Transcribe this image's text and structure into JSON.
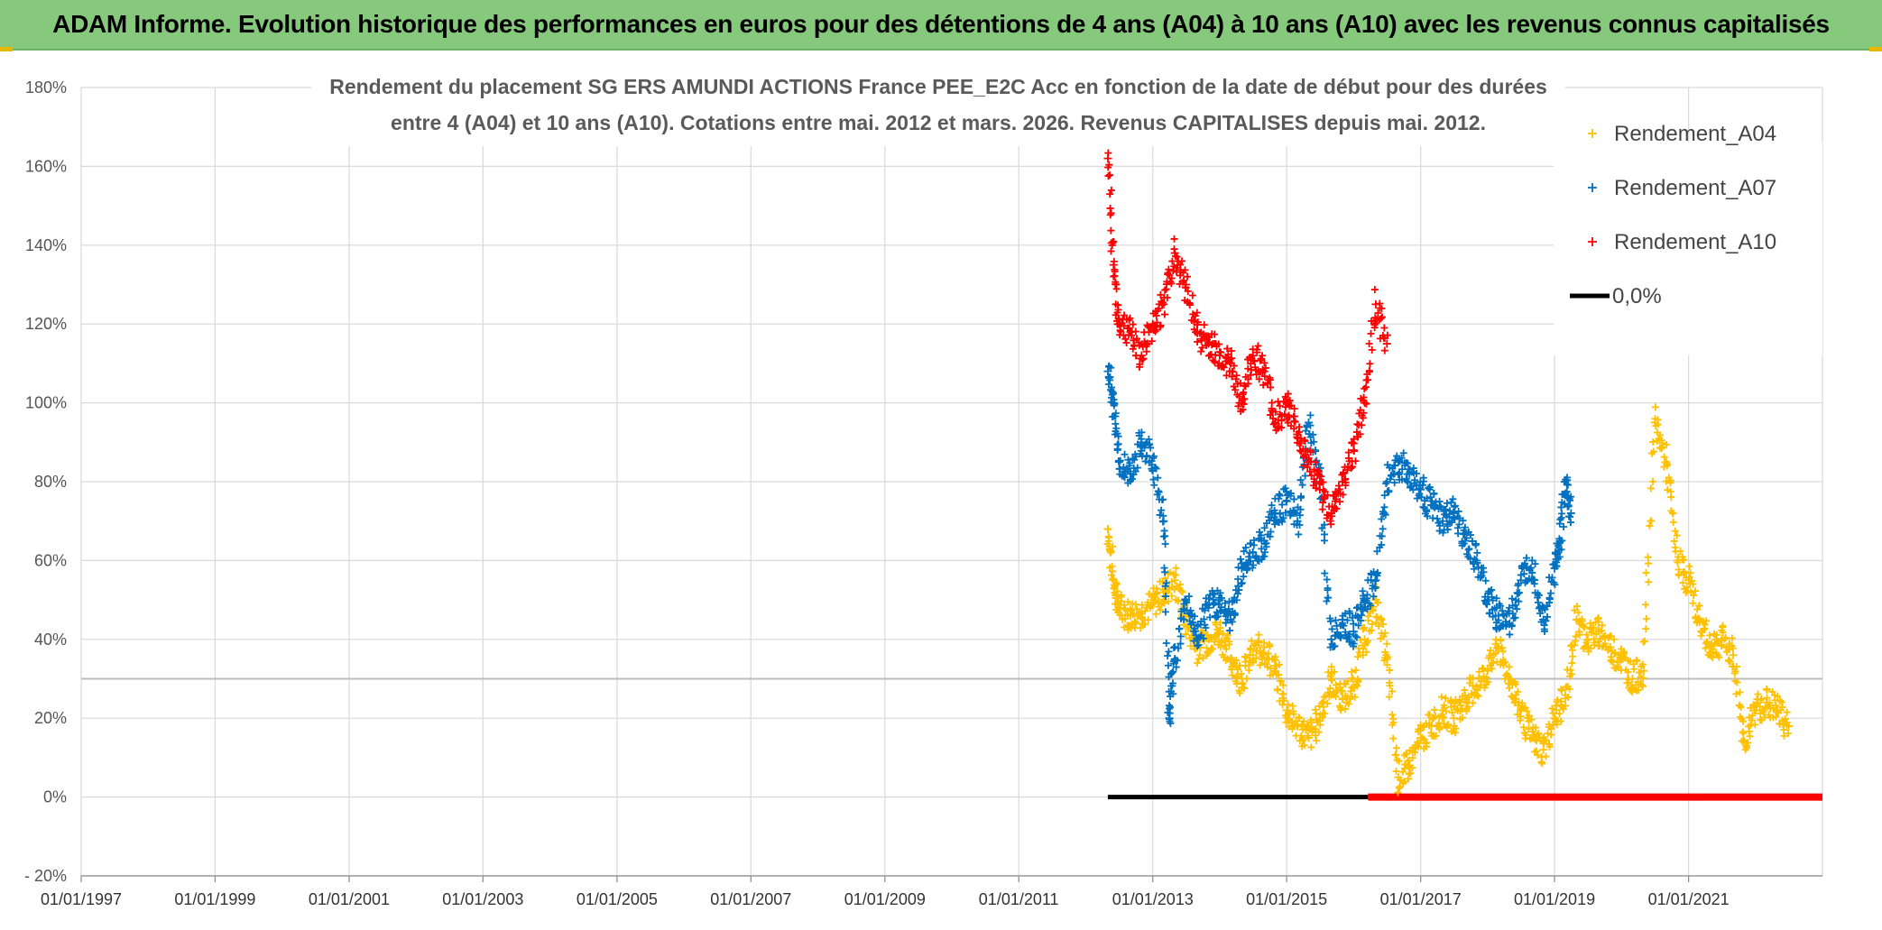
{
  "header": {
    "title": "ADAM Informe. Evolution historique des performances en euros pour des détentions de 4 ans (A04) à 10 ans (A10) avec les revenus connus capitalisés"
  },
  "colors": {
    "header_bg": "#86c97d",
    "A04": "#ffc000",
    "A07": "#0070c0",
    "A10": "#ff0000",
    "zero_line": "#000000",
    "grid": "#d9d9d9"
  },
  "chart_data": {
    "type": "scatter",
    "title_lines": [
      "Rendement du placement SG ERS AMUNDI ACTIONS France PEE_E2C Acc en fonction de la date de début pour des durées",
      "entre 4 (A04) et 10 ans (A10). Cotations entre mai. 2012 et mars. 2026. Revenus CAPITALISES depuis mai. 2012."
    ],
    "xlabel": "",
    "ylabel": "",
    "xlim": [
      "1997-01-01",
      "2023-01-01"
    ],
    "ylim": [
      -20,
      180
    ],
    "y_ticks": [
      -20,
      0,
      20,
      40,
      60,
      80,
      100,
      120,
      140,
      160,
      180
    ],
    "y_tick_labels": [
      "- 20%",
      "0%",
      "20%",
      "40%",
      "60%",
      "80%",
      "100%",
      "120%",
      "140%",
      "160%",
      "180%"
    ],
    "x_tick_labels": [
      "01/01/1997",
      "01/01/1999",
      "01/01/2001",
      "01/01/2003",
      "01/01/2005",
      "01/01/2007",
      "01/01/2009",
      "01/01/2011",
      "01/01/2013",
      "01/01/2015",
      "01/01/2017",
      "01/01/2019",
      "01/01/2021"
    ],
    "grid": true,
    "legend_position": "top-right",
    "legend": [
      "Rendement_A04",
      "Rendement_A07",
      "Rendement_A10",
      "0,0%"
    ],
    "series": [
      {
        "name": "Rendement_A04",
        "x": [
          "2012-05-01",
          "2012-06-01",
          "2012-07-01",
          "2012-09-01",
          "2012-11-01",
          "2013-01-01",
          "2013-03-01",
          "2013-05-01",
          "2013-07-01",
          "2013-09-01",
          "2013-11-01",
          "2014-01-01",
          "2014-03-01",
          "2014-05-01",
          "2014-07-01",
          "2014-09-01",
          "2014-11-01",
          "2015-01-01",
          "2015-03-01",
          "2015-05-01",
          "2015-07-01",
          "2015-09-01",
          "2015-11-01",
          "2016-01-01",
          "2016-03-01",
          "2016-05-01",
          "2016-07-01",
          "2016-09-01",
          "2016-11-01",
          "2017-01-01",
          "2017-03-01",
          "2017-05-01",
          "2017-07-01",
          "2017-09-01",
          "2017-11-01",
          "2018-01-01",
          "2018-03-01",
          "2018-05-01",
          "2018-07-01",
          "2018-09-01",
          "2018-11-01",
          "2019-01-01",
          "2019-03-01",
          "2019-05-01",
          "2019-07-01",
          "2019-09-01",
          "2019-11-01",
          "2020-01-01",
          "2020-03-01",
          "2020-05-01",
          "2020-07-01",
          "2020-09-01",
          "2020-11-01",
          "2021-01-01",
          "2021-03-01",
          "2021-05-01",
          "2021-07-01",
          "2021-09-01",
          "2021-11-01",
          "2022-01-01",
          "2022-03-01",
          "2022-05-01",
          "2022-07-01"
        ],
        "values": [
          68,
          55,
          48,
          46,
          47,
          49,
          52,
          55,
          45,
          38,
          40,
          42,
          35,
          30,
          36,
          38,
          32,
          22,
          18,
          15,
          20,
          30,
          25,
          28,
          40,
          50,
          35,
          5,
          8,
          15,
          18,
          22,
          20,
          25,
          28,
          32,
          38,
          30,
          22,
          15,
          12,
          20,
          25,
          45,
          40,
          42,
          38,
          35,
          30,
          32,
          95,
          85,
          60,
          55,
          45,
          38,
          40,
          36,
          14,
          22,
          24,
          22,
          18
        ]
      },
      {
        "name": "Rendement_A07",
        "x": [
          "2012-05-01",
          "2012-06-01",
          "2012-07-01",
          "2012-09-01",
          "2012-11-01",
          "2013-01-01",
          "2013-03-01",
          "2013-04-01",
          "2013-05-01",
          "2013-07-01",
          "2013-09-01",
          "2013-11-01",
          "2014-01-01",
          "2014-03-01",
          "2014-05-01",
          "2014-07-01",
          "2014-09-01",
          "2014-11-01",
          "2015-01-01",
          "2015-03-01",
          "2015-05-01",
          "2015-07-01",
          "2015-09-01",
          "2015-11-01",
          "2016-01-01",
          "2016-03-01",
          "2016-05-01",
          "2016-07-01",
          "2016-09-01",
          "2016-11-01",
          "2017-01-01",
          "2017-03-01",
          "2017-05-01",
          "2017-07-01",
          "2017-09-01",
          "2017-11-01",
          "2018-01-01",
          "2018-03-01",
          "2018-05-01",
          "2018-07-01",
          "2018-09-01",
          "2018-11-01",
          "2019-01-01",
          "2019-02-01",
          "2019-03-01",
          "2019-04-01"
        ],
        "values": [
          108,
          100,
          85,
          82,
          90,
          86,
          70,
          20,
          35,
          50,
          40,
          48,
          50,
          45,
          58,
          62,
          65,
          72,
          75,
          70,
          95,
          80,
          40,
          45,
          42,
          50,
          55,
          80,
          85,
          82,
          78,
          74,
          70,
          72,
          65,
          60,
          50,
          46,
          44,
          55,
          60,
          45,
          58,
          65,
          80,
          72
        ]
      },
      {
        "name": "Rendement_A10",
        "x": [
          "2012-05-01",
          "2012-06-01",
          "2012-07-01",
          "2012-09-01",
          "2012-11-01",
          "2013-01-01",
          "2013-03-01",
          "2013-05-01",
          "2013-07-01",
          "2013-09-01",
          "2013-11-01",
          "2014-01-01",
          "2014-03-01",
          "2014-05-01",
          "2014-07-01",
          "2014-09-01",
          "2014-11-01",
          "2015-01-01",
          "2015-03-01",
          "2015-05-01",
          "2015-07-01",
          "2015-09-01",
          "2015-11-01",
          "2016-01-01",
          "2016-03-01",
          "2016-05-01",
          "2016-07-01"
        ],
        "values": [
          162,
          135,
          120,
          118,
          112,
          120,
          125,
          138,
          130,
          118,
          115,
          112,
          110,
          100,
          112,
          108,
          95,
          100,
          92,
          85,
          78,
          72,
          80,
          88,
          100,
          125,
          115
        ]
      },
      {
        "name": "0,0%",
        "x": [
          "2012-05-01",
          "2023-01-01"
        ],
        "values": [
          0,
          0
        ]
      }
    ]
  }
}
